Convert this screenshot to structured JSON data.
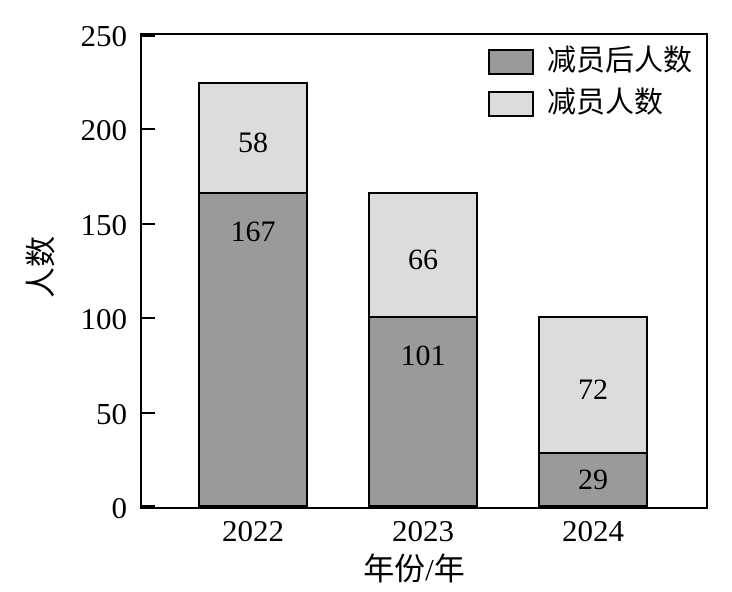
{
  "chart_data": {
    "type": "bar",
    "stacked": true,
    "title": "",
    "xlabel": "年份/年",
    "ylabel": "人数",
    "categories": [
      "2022",
      "2023",
      "2024"
    ],
    "series": [
      {
        "name": "减员后人数",
        "color": "#9A9A9A",
        "values": [
          167,
          101,
          29
        ]
      },
      {
        "name": "减员人数",
        "color": "#DCDCDC",
        "values": [
          58,
          66,
          72
        ]
      }
    ],
    "totals": [
      225,
      167,
      101
    ],
    "ylim": [
      0,
      250
    ],
    "yticks": [
      0,
      50,
      100,
      150,
      200,
      250
    ],
    "grid": false,
    "legend_position": "top-right-inside",
    "bar_border_color": "#000000",
    "axis_color": "#000000",
    "background_color": "#FFFFFF"
  }
}
